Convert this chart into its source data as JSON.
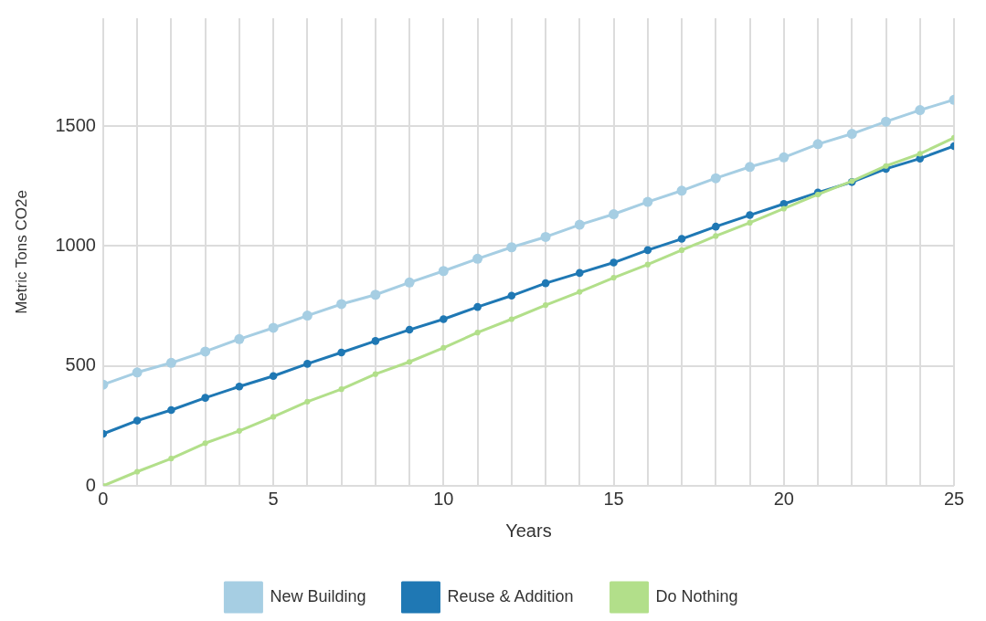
{
  "chart_data": {
    "type": "line",
    "xlabel": "Years",
    "ylabel": "Metric Tons CO2e",
    "x": [
      0,
      1,
      2,
      3,
      4,
      5,
      6,
      7,
      8,
      9,
      10,
      11,
      12,
      13,
      14,
      15,
      16,
      17,
      18,
      19,
      20,
      21,
      22,
      23,
      24,
      25
    ],
    "xlim": [
      0,
      25
    ],
    "xticks": [
      0,
      {
        "value": 1,
        "label": null
      },
      {
        "value": 2,
        "label": null
      },
      {
        "value": 3,
        "label": null
      },
      {
        "value": 4,
        "label": null
      },
      5,
      {
        "value": 6,
        "label": null
      },
      {
        "value": 7,
        "label": null
      },
      {
        "value": 8,
        "label": null
      },
      {
        "value": 9,
        "label": null
      },
      10,
      {
        "value": 11,
        "label": null
      },
      {
        "value": 12,
        "label": null
      },
      {
        "value": 13,
        "label": null
      },
      {
        "value": 14,
        "label": null
      },
      15,
      {
        "value": 16,
        "label": null
      },
      {
        "value": 17,
        "label": null
      },
      {
        "value": 18,
        "label": null
      },
      {
        "value": 19,
        "label": null
      },
      20,
      {
        "value": 21,
        "label": null
      },
      {
        "value": 22,
        "label": null
      },
      {
        "value": 23,
        "label": null
      },
      {
        "value": 24,
        "label": null
      },
      25
    ],
    "ylim": [
      0,
      1950
    ],
    "yticks": [
      0,
      500,
      1000,
      1500
    ],
    "series": [
      {
        "name": "New Building",
        "color": "#a6cee3",
        "values": [
          422,
          473,
          513,
          560,
          612,
          659,
          710,
          758,
          797,
          848,
          896,
          947,
          995,
          1038,
          1089,
          1133,
          1184,
          1231,
          1283,
          1330,
          1370,
          1425,
          1468,
          1519,
          1567,
          1610
        ]
      },
      {
        "name": "Reuse & Addition",
        "color": "#1f78b4",
        "values": [
          217,
          272,
          316,
          367,
          414,
          458,
          509,
          556,
          604,
          651,
          695,
          746,
          793,
          845,
          888,
          931,
          983,
          1030,
          1081,
          1129,
          1176,
          1223,
          1267,
          1322,
          1365,
          1417
        ]
      },
      {
        "name": "Do Nothing",
        "color": "#b2df8a",
        "values": [
          0,
          59,
          114,
          178,
          229,
          288,
          351,
          403,
          466,
          517,
          576,
          639,
          695,
          754,
          809,
          868,
          923,
          983,
          1042,
          1097,
          1156,
          1215,
          1271,
          1334,
          1385,
          1452
        ]
      }
    ],
    "grid": true,
    "legend": "bottom",
    "marker": "circle",
    "line_style": "solid"
  }
}
